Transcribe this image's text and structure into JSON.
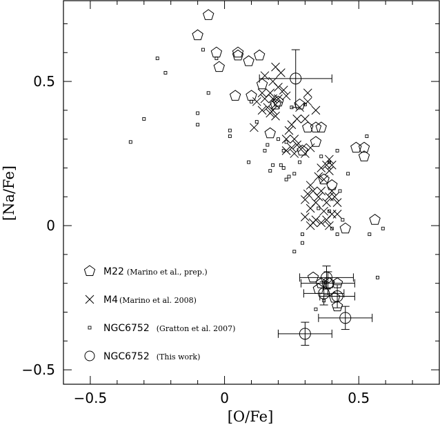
{
  "chart_data": {
    "type": "scatter",
    "xlabel": "[O/Fe]",
    "ylabel": "[Na/Fe]",
    "xlim": [
      -0.6,
      0.8
    ],
    "ylim": [
      -0.55,
      0.78
    ],
    "x_ticks": [
      -0.5,
      0,
      0.5
    ],
    "x_tick_labels": [
      "−0.5",
      "0",
      "0.5"
    ],
    "y_ticks": [
      -0.5,
      0,
      0.5
    ],
    "y_tick_labels": [
      "−0.5",
      "0",
      "0.5"
    ],
    "legend_position": "bottom-left",
    "series": [
      {
        "name": "M22",
        "reference": "(Marino et al., prep.)",
        "marker": "pentagon",
        "points": [
          [
            -0.06,
            0.73
          ],
          [
            -0.1,
            0.66
          ],
          [
            -0.03,
            0.6
          ],
          [
            0.05,
            0.6
          ],
          [
            0.13,
            0.59
          ],
          [
            0.09,
            0.57
          ],
          [
            -0.02,
            0.55
          ],
          [
            0.05,
            0.59
          ],
          [
            0.04,
            0.45
          ],
          [
            0.14,
            0.49
          ],
          [
            0.1,
            0.45
          ],
          [
            0.2,
            0.43
          ],
          [
            0.19,
            0.42
          ],
          [
            0.17,
            0.32
          ],
          [
            0.28,
            0.42
          ],
          [
            0.31,
            0.34
          ],
          [
            0.36,
            0.34
          ],
          [
            0.29,
            0.26
          ],
          [
            0.34,
            0.34
          ],
          [
            0.34,
            0.29
          ],
          [
            0.49,
            0.27
          ],
          [
            0.52,
            0.27
          ],
          [
            0.52,
            0.24
          ],
          [
            0.37,
            0.16
          ],
          [
            0.4,
            0.14
          ],
          [
            0.56,
            0.02
          ],
          [
            0.45,
            -0.01
          ],
          [
            0.33,
            -0.18
          ],
          [
            0.36,
            -0.2
          ],
          [
            0.39,
            -0.2
          ],
          [
            0.42,
            -0.2
          ],
          [
            0.35,
            -0.22
          ],
          [
            0.41,
            -0.25
          ],
          [
            0.42,
            -0.28
          ]
        ]
      },
      {
        "name": "M4",
        "reference": "(Marino et al. 2008)",
        "marker": "cross",
        "points": [
          [
            0.19,
            0.55
          ],
          [
            0.21,
            0.53
          ],
          [
            0.15,
            0.52
          ],
          [
            0.18,
            0.5
          ],
          [
            0.14,
            0.46
          ],
          [
            0.17,
            0.46
          ],
          [
            0.2,
            0.48
          ],
          [
            0.22,
            0.47
          ],
          [
            0.15,
            0.44
          ],
          [
            0.18,
            0.44
          ],
          [
            0.12,
            0.43
          ],
          [
            0.16,
            0.41
          ],
          [
            0.14,
            0.4
          ],
          [
            0.19,
            0.42
          ],
          [
            0.2,
            0.44
          ],
          [
            0.23,
            0.45
          ],
          [
            0.17,
            0.39
          ],
          [
            0.19,
            0.38
          ],
          [
            0.18,
            0.4
          ],
          [
            0.28,
            0.41
          ],
          [
            0.31,
            0.46
          ],
          [
            0.31,
            0.43
          ],
          [
            0.34,
            0.4
          ],
          [
            0.27,
            0.37
          ],
          [
            0.24,
            0.33
          ],
          [
            0.25,
            0.35
          ],
          [
            0.3,
            0.37
          ],
          [
            0.11,
            0.34
          ],
          [
            0.23,
            0.3
          ],
          [
            0.26,
            0.3
          ],
          [
            0.27,
            0.28
          ],
          [
            0.23,
            0.26
          ],
          [
            0.25,
            0.27
          ],
          [
            0.29,
            0.27
          ],
          [
            0.32,
            0.27
          ],
          [
            0.3,
            0.25
          ],
          [
            0.26,
            0.25
          ],
          [
            0.39,
            0.23
          ],
          [
            0.4,
            0.21
          ],
          [
            0.38,
            0.21
          ],
          [
            0.36,
            0.2
          ],
          [
            0.39,
            0.19
          ],
          [
            0.35,
            0.17
          ],
          [
            0.37,
            0.16
          ],
          [
            0.4,
            0.12
          ],
          [
            0.36,
            0.12
          ],
          [
            0.32,
            0.14
          ],
          [
            0.33,
            0.12
          ],
          [
            0.35,
            0.1
          ],
          [
            0.39,
            0.1
          ],
          [
            0.38,
            0.08
          ],
          [
            0.41,
            0.1
          ],
          [
            0.42,
            0.08
          ],
          [
            0.34,
            0.08
          ],
          [
            0.31,
            0.11
          ],
          [
            0.3,
            0.09
          ],
          [
            0.32,
            0.06
          ],
          [
            0.37,
            0.05
          ],
          [
            0.4,
            0.04
          ],
          [
            0.42,
            0.04
          ],
          [
            0.38,
            0.02
          ],
          [
            0.34,
            0.02
          ],
          [
            0.33,
            0.01
          ],
          [
            0.36,
            0.01
          ],
          [
            0.39,
            0
          ],
          [
            0.32,
            0.0
          ],
          [
            0.3,
            0.03
          ]
        ]
      },
      {
        "name": "NGC6752",
        "reference": "(Gratton et al. 2007)",
        "marker": "small-square",
        "points": [
          [
            -0.35,
            0.29
          ],
          [
            -0.3,
            0.37
          ],
          [
            -0.25,
            0.58
          ],
          [
            -0.22,
            0.53
          ],
          [
            -0.08,
            0.61
          ],
          [
            -0.03,
            0.58
          ],
          [
            -0.1,
            0.39
          ],
          [
            -0.1,
            0.35
          ],
          [
            -0.06,
            0.46
          ],
          [
            0.02,
            0.33
          ],
          [
            0.02,
            0.31
          ],
          [
            0.1,
            0.43
          ],
          [
            0.09,
            0.22
          ],
          [
            0.12,
            0.36
          ],
          [
            0.15,
            0.26
          ],
          [
            0.16,
            0.28
          ],
          [
            0.18,
            0.21
          ],
          [
            0.17,
            0.19
          ],
          [
            0.2,
            0.3
          ],
          [
            0.21,
            0.21
          ],
          [
            0.22,
            0.2
          ],
          [
            0.22,
            0.26
          ],
          [
            0.23,
            0.29
          ],
          [
            0.24,
            0.17
          ],
          [
            0.26,
            0.18
          ],
          [
            0.23,
            0.16
          ],
          [
            0.25,
            0.41
          ],
          [
            0.28,
            0.22
          ],
          [
            0.3,
            0.42
          ],
          [
            0.36,
            0.24
          ],
          [
            0.39,
            0.22
          ],
          [
            0.42,
            0.26
          ],
          [
            0.44,
            0.02
          ],
          [
            0.46,
            0.18
          ],
          [
            0.42,
            -0.03
          ],
          [
            0.53,
            0.31
          ],
          [
            0.54,
            -0.03
          ],
          [
            0.59,
            -0.01
          ],
          [
            0.57,
            -0.18
          ],
          [
            0.29,
            -0.06
          ],
          [
            0.29,
            -0.03
          ],
          [
            0.26,
            -0.09
          ],
          [
            0.34,
            -0.29
          ],
          [
            0.37,
            -0.26
          ],
          [
            0.4,
            -0.01
          ],
          [
            0.35,
            0.06
          ],
          [
            0.39,
            0.05
          ],
          [
            0.43,
            0.12
          ]
        ]
      },
      {
        "name": "NGC6752",
        "reference": "(This work)",
        "marker": "open-circle",
        "points": [
          {
            "x": 0.265,
            "y": 0.51,
            "xerr": 0.135,
            "yerr": 0.1
          },
          {
            "x": 0.3,
            "y": -0.375,
            "xerr": 0.1,
            "yerr": 0.04
          },
          {
            "x": 0.45,
            "y": -0.32,
            "xerr": 0.1,
            "yerr": 0.04
          },
          {
            "x": 0.38,
            "y": -0.18,
            "xerr": 0.1,
            "yerr": 0.04
          },
          {
            "x": 0.385,
            "y": -0.2,
            "xerr": 0.1,
            "yerr": 0.04
          },
          {
            "x": 0.37,
            "y": -0.235,
            "xerr": 0.075,
            "yerr": 0.04
          },
          {
            "x": 0.42,
            "y": -0.245,
            "xerr": 0.065,
            "yerr": 0.04
          }
        ]
      }
    ]
  }
}
